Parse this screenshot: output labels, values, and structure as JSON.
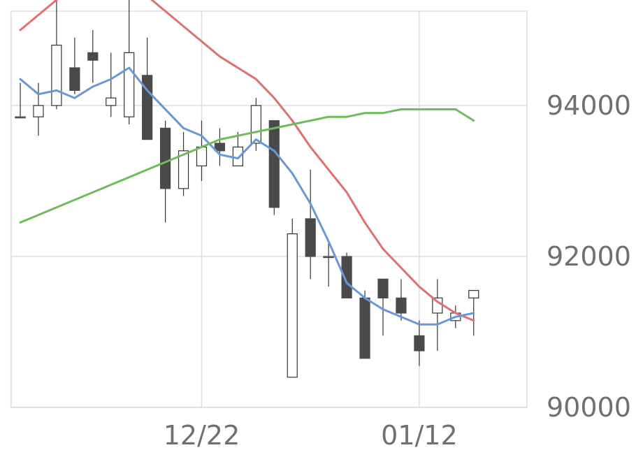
{
  "chart_data": {
    "type": "candlestick",
    "title": "",
    "xlabel": "",
    "ylabel": "",
    "ylim": [
      90000,
      95250
    ],
    "y_ticks": [
      90000,
      92000,
      94000
    ],
    "y_tick_labels": [
      "90000",
      "92000",
      "94000"
    ],
    "x_tick_labels": [
      {
        "label": "12/22",
        "index": 10
      },
      {
        "label": "01/12",
        "index": 22
      }
    ],
    "grid": true,
    "y_axis_position": "right",
    "up_color": "#ffffff",
    "down_color": "#4a4a4a",
    "candles": [
      {
        "o": 93850,
        "h": 94300,
        "l": 93850,
        "c": 93850
      },
      {
        "o": 93850,
        "h": 94300,
        "l": 93600,
        "c": 94000
      },
      {
        "o": 94000,
        "h": 95550,
        "l": 93950,
        "c": 94800
      },
      {
        "o": 94500,
        "h": 94900,
        "l": 94150,
        "c": 94200
      },
      {
        "o": 94700,
        "h": 95000,
        "l": 94300,
        "c": 94600
      },
      {
        "o": 94000,
        "h": 94700,
        "l": 93850,
        "c": 94100
      },
      {
        "o": 93850,
        "h": 95550,
        "l": 93750,
        "c": 94700
      },
      {
        "o": 94400,
        "h": 94900,
        "l": 93550,
        "c": 93550
      },
      {
        "o": 93700,
        "h": 93800,
        "l": 92450,
        "c": 92900
      },
      {
        "o": 92900,
        "h": 93650,
        "l": 92800,
        "c": 93400
      },
      {
        "o": 93200,
        "h": 93800,
        "l": 93000,
        "c": 93450
      },
      {
        "o": 93500,
        "h": 93700,
        "l": 93200,
        "c": 93400
      },
      {
        "o": 93200,
        "h": 93650,
        "l": 93200,
        "c": 93450
      },
      {
        "o": 93500,
        "h": 94100,
        "l": 93400,
        "c": 94000
      },
      {
        "o": 93800,
        "h": 93800,
        "l": 92550,
        "c": 92650
      },
      {
        "o": 90400,
        "h": 92500,
        "l": 90400,
        "c": 92300
      },
      {
        "o": 92500,
        "h": 93150,
        "l": 91700,
        "c": 92000
      },
      {
        "o": 92000,
        "h": 92200,
        "l": 91600,
        "c": 92000
      },
      {
        "o": 92000,
        "h": 92050,
        "l": 91450,
        "c": 91450
      },
      {
        "o": 91450,
        "h": 91550,
        "l": 90650,
        "c": 90650
      },
      {
        "o": 91700,
        "h": 91700,
        "l": 90950,
        "c": 91450
      },
      {
        "o": 91450,
        "h": 91700,
        "l": 91150,
        "c": 91250
      },
      {
        "o": 90950,
        "h": 91150,
        "l": 90550,
        "c": 90750
      },
      {
        "o": 91250,
        "h": 91700,
        "l": 90750,
        "c": 91450
      },
      {
        "o": 91150,
        "h": 91350,
        "l": 91050,
        "c": 91250
      },
      {
        "o": 91450,
        "h": 91550,
        "l": 90950,
        "c": 91550
      }
    ],
    "series": [
      {
        "color": "#e07070",
        "values": [
          95000,
          95200,
          95400,
          95550,
          95750,
          95750,
          95650,
          95450,
          95250,
          95050,
          94850,
          94650,
          94500,
          94350,
          94100,
          93800,
          93450,
          93150,
          92850,
          92450,
          92100,
          91850,
          91600,
          91400,
          91250,
          91150
        ]
      },
      {
        "color": "#6898d8",
        "values": [
          94350,
          94150,
          94200,
          94100,
          94250,
          94350,
          94500,
          94200,
          93950,
          93700,
          93600,
          93350,
          93300,
          93550,
          93400,
          93100,
          92700,
          92200,
          91650,
          91450,
          91300,
          91200,
          91100,
          91100,
          91200,
          91250
        ]
      },
      {
        "color": "#6cbc5c",
        "values": [
          92450,
          92550,
          92650,
          92750,
          92850,
          92950,
          93050,
          93150,
          93250,
          93350,
          93450,
          93550,
          93600,
          93650,
          93700,
          93750,
          93800,
          93850,
          93850,
          93900,
          93900,
          93950,
          93950,
          93950,
          93950,
          93800
        ]
      }
    ]
  }
}
